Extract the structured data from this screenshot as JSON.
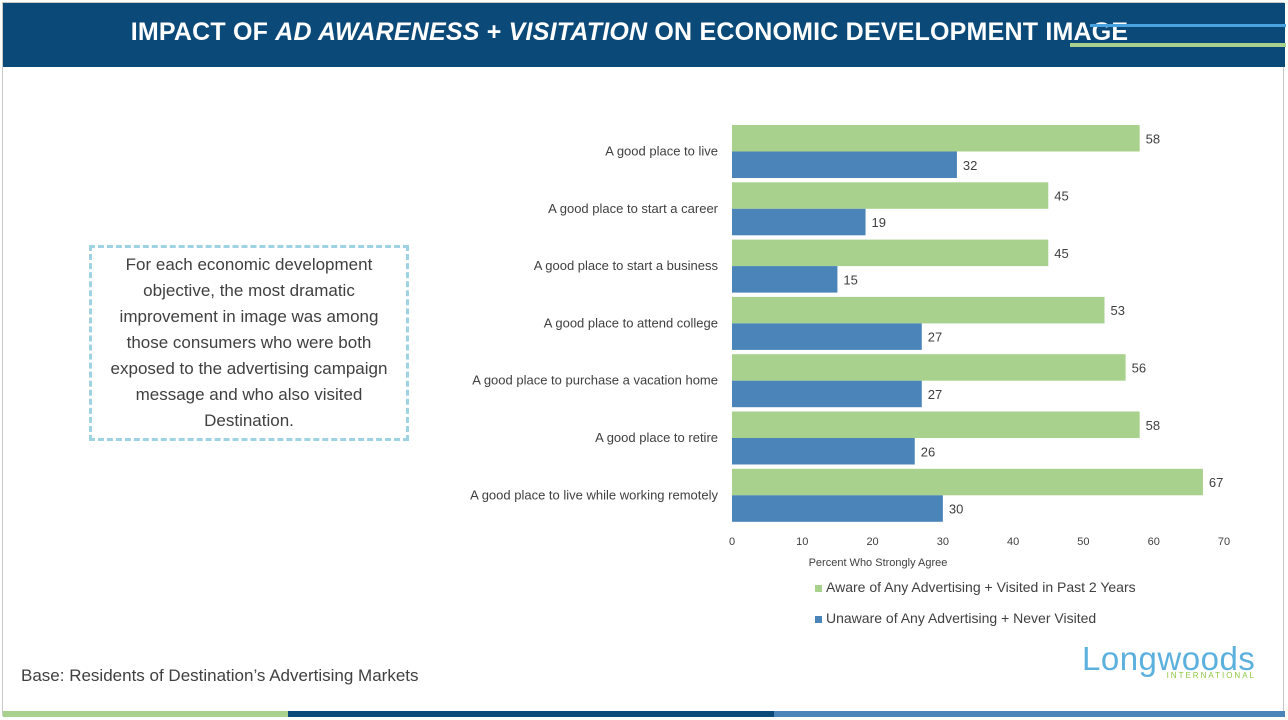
{
  "header": {
    "title_part1": "IMPACT OF ",
    "title_italic1": "AD AWARENESS",
    "title_part2": " + ",
    "title_italic2": "VISITATION",
    "title_part3": " ON ECONOMIC DEVELOPMENT IMAGE"
  },
  "callout": {
    "text": "For each economic development objective, the most dramatic improvement in image was among those consumers who were both exposed to the advertising campaign message and who also visited Destination."
  },
  "base_note": "Base: Residents of Destination’s Advertising Markets",
  "logo": {
    "word": "Longwoods",
    "sub": "INTERNATIONAL"
  },
  "colors": {
    "header_bg": "#0b4a78",
    "series_aware": "#a9d18e",
    "series_unaware": "#4a84b8",
    "callout_border": "#9fd3e3"
  },
  "chart_data": {
    "type": "bar",
    "orientation": "horizontal",
    "categories": [
      "A good place to live",
      "A good place to start a career",
      "A good place to start a business",
      "A good place to attend college",
      "A good place to purchase a vacation home",
      "A good place to retire",
      "A good place to live while working remotely"
    ],
    "series": [
      {
        "name": "Aware of Any Advertising + Visited in Past 2 Years",
        "values": [
          58,
          45,
          45,
          53,
          56,
          58,
          67
        ]
      },
      {
        "name": "Unaware of Any Advertising + Never Visited",
        "values": [
          32,
          19,
          15,
          27,
          27,
          26,
          30
        ]
      }
    ],
    "xlabel": "Percent Who Strongly Agree",
    "xlim": [
      0,
      70
    ],
    "xticks": [
      0,
      10,
      20,
      30,
      40,
      50,
      60,
      70
    ],
    "grid": false,
    "legend_position": "bottom"
  }
}
